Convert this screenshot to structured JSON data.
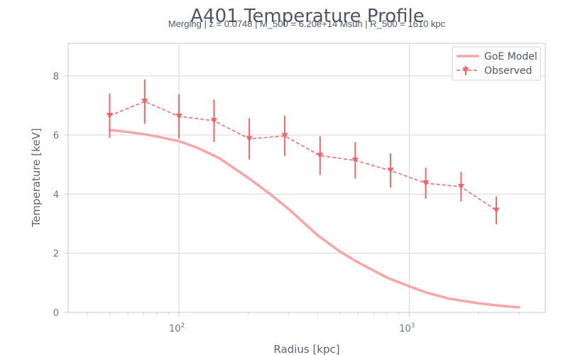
{
  "chart_data": {
    "type": "line",
    "title": "A401 Temperature Profile",
    "subtitle": "Merging | z = 0.0748 | M_500 = 6.20e+14 Msun | R_500 = 1610 kpc",
    "xlabel": "Radius [kpc]",
    "ylabel": "Temperature [keV]",
    "x_scale": "log",
    "xlim": [
      33,
      3900
    ],
    "ylim": [
      0,
      9.1
    ],
    "x_ticks": [
      {
        "value": 100,
        "base": "10",
        "exp": "2"
      },
      {
        "value": 1000,
        "base": "10",
        "exp": "3"
      }
    ],
    "y_ticks": [
      0,
      2,
      4,
      6,
      8
    ],
    "grid": true,
    "legend": "top-right",
    "colors": {
      "model": "#f8a5a5",
      "observed": "#ef6767",
      "grid": "#d3d6dc",
      "axes": "#c4c8cf"
    },
    "series": [
      {
        "name": "GoE Model",
        "style": "solid",
        "x": [
          50,
          60,
          70,
          80,
          100,
          120,
          150,
          200,
          250,
          300,
          400,
          500,
          600,
          800,
          1000,
          1200,
          1500,
          2000,
          2500,
          3000
        ],
        "y": [
          6.17,
          6.1,
          6.03,
          5.95,
          5.79,
          5.57,
          5.21,
          4.55,
          3.99,
          3.49,
          2.61,
          2.06,
          1.69,
          1.18,
          0.88,
          0.66,
          0.46,
          0.31,
          0.22,
          0.17
        ]
      },
      {
        "name": "Observed",
        "style": "dashed",
        "marker": "triangle-down",
        "x": [
          50,
          71,
          100,
          142,
          202,
          288,
          410,
          583,
          830,
          1180,
          1680,
          2390
        ],
        "y": [
          6.65,
          7.13,
          6.63,
          6.48,
          5.87,
          5.97,
          5.3,
          5.14,
          4.8,
          4.37,
          4.25,
          3.45
        ],
        "yerr": [
          0.75,
          0.75,
          0.75,
          0.72,
          0.7,
          0.68,
          0.65,
          0.62,
          0.58,
          0.52,
          0.5,
          0.47
        ]
      }
    ]
  }
}
